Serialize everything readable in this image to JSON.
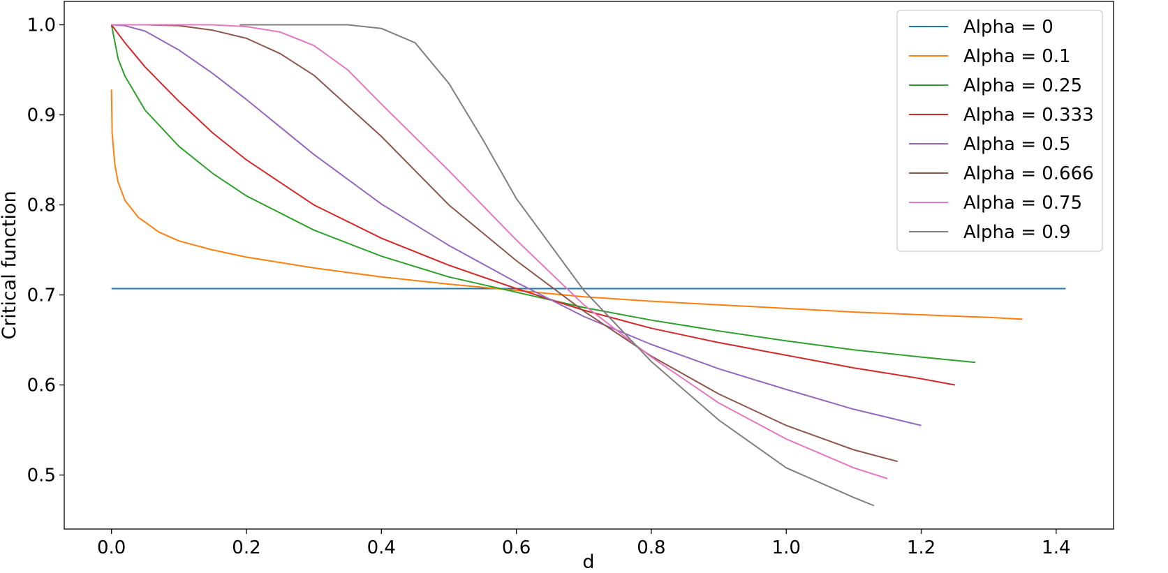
{
  "chart_data": {
    "type": "line",
    "title": "",
    "xlabel": "d",
    "ylabel": "Critical function",
    "xlim": [
      -0.07,
      1.485
    ],
    "ylim": [
      0.44,
      1.026
    ],
    "xticks": [
      0.0,
      0.2,
      0.4,
      0.6,
      0.8,
      1.0,
      1.2,
      1.4
    ],
    "yticks": [
      0.5,
      0.6,
      0.7,
      0.8,
      0.9,
      1.0
    ],
    "xtick_labels": [
      "0.0",
      "0.2",
      "0.4",
      "0.6",
      "0.8",
      "1.0",
      "1.2",
      "1.4"
    ],
    "ytick_labels": [
      "0.5",
      "0.6",
      "0.7",
      "0.8",
      "0.9",
      "1.0"
    ],
    "grid": false,
    "legend_position": "top-right",
    "series": [
      {
        "name": "Alpha = 0",
        "color": "#1f77b4",
        "x": [
          0.0,
          0.2,
          0.4,
          0.6,
          0.8,
          1.0,
          1.2,
          1.414
        ],
        "y": [
          0.707,
          0.707,
          0.707,
          0.707,
          0.707,
          0.707,
          0.707,
          0.707
        ]
      },
      {
        "name": "Alpha = 0.1",
        "color": "#ff7f0e",
        "x": [
          0.0,
          0.001,
          0.005,
          0.01,
          0.02,
          0.04,
          0.07,
          0.1,
          0.15,
          0.2,
          0.3,
          0.4,
          0.5,
          0.6,
          0.7,
          0.8,
          0.9,
          1.0,
          1.1,
          1.2,
          1.3,
          1.35
        ],
        "y": [
          0.928,
          0.88,
          0.845,
          0.825,
          0.805,
          0.786,
          0.77,
          0.76,
          0.75,
          0.742,
          0.73,
          0.72,
          0.712,
          0.705,
          0.698,
          0.693,
          0.689,
          0.685,
          0.681,
          0.678,
          0.675,
          0.673
        ]
      },
      {
        "name": "Alpha = 0.25",
        "color": "#2ca02c",
        "x": [
          0.0,
          0.01,
          0.02,
          0.05,
          0.1,
          0.15,
          0.2,
          0.3,
          0.4,
          0.5,
          0.6,
          0.7,
          0.8,
          0.9,
          1.0,
          1.1,
          1.2,
          1.28
        ],
        "y": [
          1.0,
          0.962,
          0.943,
          0.905,
          0.865,
          0.835,
          0.81,
          0.772,
          0.743,
          0.72,
          0.703,
          0.686,
          0.672,
          0.66,
          0.649,
          0.639,
          0.631,
          0.625
        ]
      },
      {
        "name": "Alpha = 0.333",
        "color": "#d62728",
        "x": [
          0.0,
          0.02,
          0.05,
          0.1,
          0.15,
          0.2,
          0.3,
          0.4,
          0.5,
          0.6,
          0.7,
          0.8,
          0.9,
          1.0,
          1.1,
          1.2,
          1.25
        ],
        "y": [
          1.0,
          0.98,
          0.953,
          0.915,
          0.88,
          0.85,
          0.8,
          0.763,
          0.733,
          0.707,
          0.683,
          0.663,
          0.647,
          0.633,
          0.619,
          0.607,
          0.6
        ]
      },
      {
        "name": "Alpha = 0.5",
        "color": "#9467bd",
        "x": [
          0.0,
          0.02,
          0.05,
          0.1,
          0.15,
          0.2,
          0.3,
          0.4,
          0.5,
          0.6,
          0.7,
          0.8,
          0.9,
          1.0,
          1.1,
          1.2
        ],
        "y": [
          1.0,
          0.999,
          0.993,
          0.972,
          0.946,
          0.917,
          0.856,
          0.801,
          0.755,
          0.714,
          0.676,
          0.645,
          0.618,
          0.595,
          0.573,
          0.555
        ]
      },
      {
        "name": "Alpha = 0.666",
        "color": "#8c564b",
        "x": [
          0.0,
          0.05,
          0.1,
          0.15,
          0.2,
          0.25,
          0.3,
          0.4,
          0.5,
          0.6,
          0.7,
          0.8,
          0.9,
          1.0,
          1.1,
          1.165
        ],
        "y": [
          1.0,
          1.0,
          0.999,
          0.994,
          0.985,
          0.968,
          0.944,
          0.876,
          0.8,
          0.738,
          0.682,
          0.632,
          0.59,
          0.555,
          0.528,
          0.515
        ]
      },
      {
        "name": "Alpha = 0.75",
        "color": "#e377c2",
        "x": [
          0.0,
          0.05,
          0.1,
          0.15,
          0.2,
          0.25,
          0.3,
          0.35,
          0.4,
          0.5,
          0.6,
          0.7,
          0.8,
          0.9,
          1.0,
          1.1,
          1.15
        ],
        "y": [
          1.0,
          1.0,
          1.0,
          1.0,
          0.998,
          0.992,
          0.977,
          0.95,
          0.912,
          0.838,
          0.761,
          0.689,
          0.631,
          0.58,
          0.54,
          0.508,
          0.496
        ]
      },
      {
        "name": "Alpha = 0.9",
        "color": "#7f7f7f",
        "x": [
          0.19,
          0.25,
          0.3,
          0.35,
          0.4,
          0.45,
          0.5,
          0.55,
          0.6,
          0.7,
          0.8,
          0.9,
          1.0,
          1.1,
          1.13
        ],
        "y": [
          1.0,
          1.0,
          1.0,
          1.0,
          0.996,
          0.98,
          0.935,
          0.873,
          0.807,
          0.705,
          0.626,
          0.561,
          0.508,
          0.475,
          0.466
        ]
      }
    ]
  }
}
